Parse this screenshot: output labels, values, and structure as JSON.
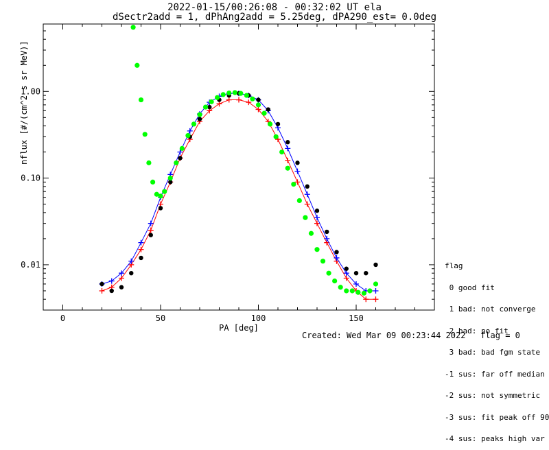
{
  "header": {
    "line1": "2022-01-15/00:26:08 - 00:32:02 UT ela",
    "line2": "dSectr2add = 1, dPhAng2add = 5.25deg, dPA290_est=   0.0deg"
  },
  "footer": {
    "created": "Created: Wed Mar 09 00:23:44 2022",
    "flag": "flag = 0"
  },
  "legend": {
    "title": "flag",
    "items": [
      " 0 good fit",
      " 1 bad: not converge",
      " 2 bad: no fit",
      " 3 bad: bad fgm state",
      "-1 sus: far off median",
      "-2 sus: not symmetric",
      "-3 sus: fit peak off 90",
      "-4 sus: peaks high var"
    ]
  },
  "colors": {
    "red": "#ff0000",
    "blue": "#0000ff",
    "green": "#00ff00",
    "black": "#000000"
  },
  "chart_data": {
    "type": "scatter",
    "title": "2022-01-15/00:26:08 - 00:32:02 UT ela",
    "xlabel": "PA [deg]",
    "ylabel": "nflux [#/(cm^2 s sr MeV)]",
    "xlim": [
      -10,
      190
    ],
    "ylim": [
      0.003,
      6.0
    ],
    "yscale": "log",
    "xticks": [
      0,
      50,
      100,
      150
    ],
    "yticks": [
      0.01,
      0.1,
      1.0
    ],
    "ytick_labels": [
      "0.01",
      "0.10",
      "1.00"
    ],
    "series": [
      {
        "color": "red",
        "marker": "plus",
        "x": [
          20,
          25,
          30,
          35,
          40,
          45,
          50,
          55,
          60,
          65,
          70,
          75,
          80,
          85,
          90,
          95,
          100,
          105,
          110,
          115,
          120,
          125,
          130,
          135,
          140,
          145,
          150,
          155,
          160
        ],
        "y": [
          0.005,
          0.0055,
          0.007,
          0.01,
          0.015,
          0.025,
          0.05,
          0.09,
          0.17,
          0.28,
          0.45,
          0.6,
          0.72,
          0.8,
          0.8,
          0.75,
          0.62,
          0.45,
          0.28,
          0.16,
          0.09,
          0.05,
          0.03,
          0.018,
          0.011,
          0.007,
          0.005,
          0.004,
          0.004
        ]
      },
      {
        "color": "blue",
        "marker": "plus",
        "x": [
          20,
          25,
          30,
          35,
          40,
          45,
          50,
          55,
          60,
          65,
          70,
          75,
          80,
          85,
          90,
          95,
          100,
          105,
          110,
          115,
          120,
          125,
          130,
          135,
          140,
          145,
          150,
          155,
          160
        ],
        "y": [
          0.006,
          0.0065,
          0.008,
          0.011,
          0.018,
          0.03,
          0.06,
          0.11,
          0.2,
          0.35,
          0.55,
          0.75,
          0.88,
          0.95,
          0.95,
          0.9,
          0.8,
          0.6,
          0.38,
          0.22,
          0.12,
          0.065,
          0.035,
          0.02,
          0.012,
          0.008,
          0.006,
          0.005,
          0.005
        ]
      },
      {
        "color": "black",
        "marker": "dot",
        "x": [
          20,
          25,
          30,
          35,
          40,
          45,
          50,
          55,
          60,
          65,
          70,
          75,
          80,
          85,
          90,
          95,
          100,
          105,
          110,
          115,
          120,
          125,
          130,
          135,
          140,
          145,
          150,
          155,
          160
        ],
        "y": [
          0.006,
          0.005,
          0.0055,
          0.008,
          0.012,
          0.022,
          0.045,
          0.09,
          0.17,
          0.3,
          0.48,
          0.66,
          0.8,
          0.9,
          0.95,
          0.9,
          0.8,
          0.62,
          0.42,
          0.26,
          0.15,
          0.08,
          0.042,
          0.024,
          0.014,
          0.009,
          0.008,
          0.008,
          0.01
        ]
      },
      {
        "color": "green",
        "marker": "dot",
        "x": [
          36,
          38,
          40,
          42,
          44,
          46,
          48,
          50,
          52,
          55,
          58,
          61,
          64,
          67,
          70,
          73,
          76,
          79,
          82,
          85,
          88,
          91,
          94,
          97,
          100,
          103,
          106,
          109,
          112,
          115,
          118,
          121,
          124,
          127,
          130,
          133,
          136,
          139,
          142,
          145,
          148,
          151,
          154,
          157,
          160
        ],
        "y": [
          5.5,
          2.0,
          0.8,
          0.32,
          0.15,
          0.09,
          0.065,
          0.062,
          0.07,
          0.1,
          0.15,
          0.22,
          0.31,
          0.42,
          0.54,
          0.66,
          0.76,
          0.85,
          0.92,
          0.96,
          0.97,
          0.95,
          0.9,
          0.82,
          0.7,
          0.56,
          0.42,
          0.3,
          0.2,
          0.13,
          0.085,
          0.055,
          0.035,
          0.023,
          0.015,
          0.011,
          0.008,
          0.0065,
          0.0055,
          0.005,
          0.005,
          0.0048,
          0.0047,
          0.005,
          0.006
        ]
      }
    ]
  }
}
